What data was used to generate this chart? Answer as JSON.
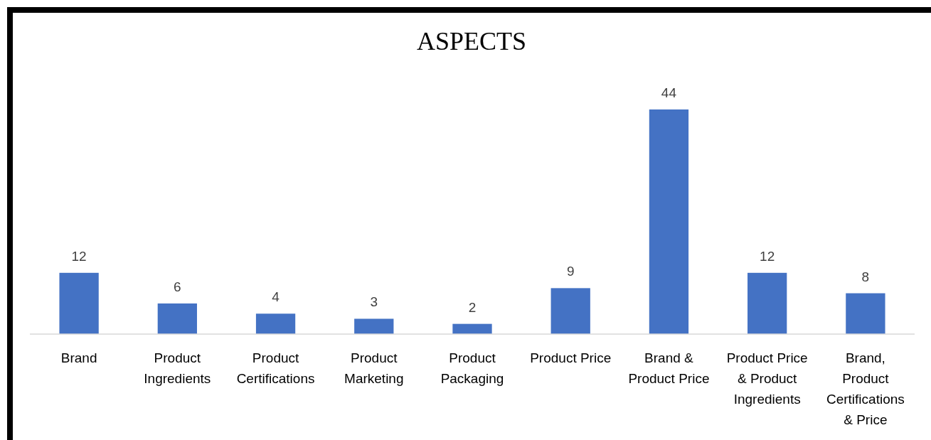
{
  "chart_data": {
    "type": "bar",
    "title": "ASPECTS",
    "categories": [
      "Brand",
      "Product\nIngredients",
      "Product\nCertifications",
      "Product\nMarketing",
      "Product\nPackaging",
      "Product Price",
      "Brand &\nProduct Price",
      "Product Price\n& Product\nIngredients",
      "Brand,\nProduct\nCertifications\n& Price"
    ],
    "values": [
      12,
      6,
      4,
      3,
      2,
      9,
      44,
      12,
      8
    ],
    "color": "#4472c4",
    "data_labels": true
  }
}
